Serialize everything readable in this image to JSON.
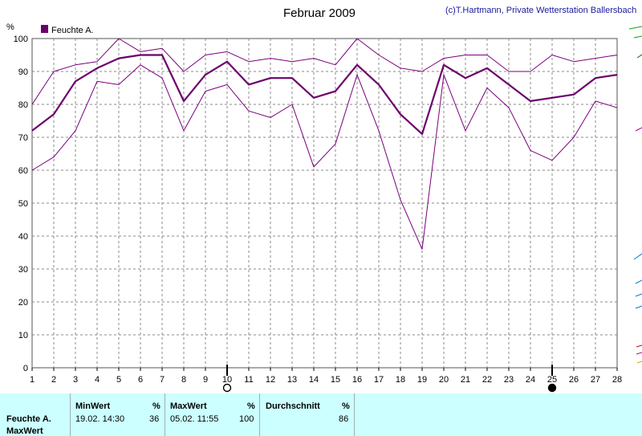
{
  "chart_data": {
    "type": "line",
    "title": "Februar 2009",
    "credit": "(c)T.Hartmann, Private Wetterstation Ballersbach",
    "ylabel": "%",
    "ylim": [
      0,
      100
    ],
    "yticks": [
      "0",
      "10",
      "20",
      "30",
      "40",
      "50",
      "60",
      "70",
      "80",
      "90",
      "100"
    ],
    "x": [
      "1",
      "2",
      "3",
      "4",
      "5",
      "6",
      "7",
      "8",
      "9",
      "10",
      "11",
      "12",
      "13",
      "14",
      "15",
      "16",
      "17",
      "18",
      "19",
      "20",
      "21",
      "22",
      "23",
      "24",
      "25",
      "26",
      "27",
      "28"
    ],
    "grid": true,
    "legend": "top-left",
    "legend_label": "Feuchte A.",
    "series": [
      {
        "name": "Feuchte A.",
        "role": "avg",
        "color": "#6b006b",
        "values": [
          72,
          77,
          87,
          91,
          94,
          95,
          95,
          81,
          89,
          93,
          86,
          88,
          88,
          82,
          84,
          92,
          86,
          77,
          71,
          92,
          88,
          91,
          86,
          81,
          82,
          83,
          88,
          89
        ]
      },
      {
        "role": "max",
        "color": "#7a007a",
        "values": [
          80,
          90,
          92,
          93,
          100,
          96,
          97,
          90,
          95,
          96,
          93,
          94,
          93,
          94,
          92,
          100,
          95,
          91,
          90,
          94,
          95,
          95,
          90,
          90,
          95,
          93,
          94,
          95
        ]
      },
      {
        "role": "min",
        "color": "#7a007a",
        "values": [
          60,
          64,
          72,
          87,
          86,
          92,
          88,
          72,
          84,
          86,
          78,
          76,
          80,
          61,
          68,
          89,
          72,
          51,
          36,
          89,
          72,
          85,
          79,
          66,
          63,
          70,
          81,
          79
        ]
      }
    ],
    "moon_markers": [
      {
        "day": 10,
        "phase": "full-moon-icon"
      },
      {
        "day": 25,
        "phase": "new-moon-icon"
      }
    ]
  },
  "stats": {
    "row1": "Feuchte A.",
    "row2": "MaxWert",
    "min_header": "MinWert",
    "max_header": "MaxWert",
    "avg_header": "Durchschnitt",
    "unit": "%",
    "min_time": "19.02.  14:30",
    "min_value": "36",
    "max_time": "05.02.  11:55",
    "max_value": "100",
    "avg_value": "86"
  }
}
